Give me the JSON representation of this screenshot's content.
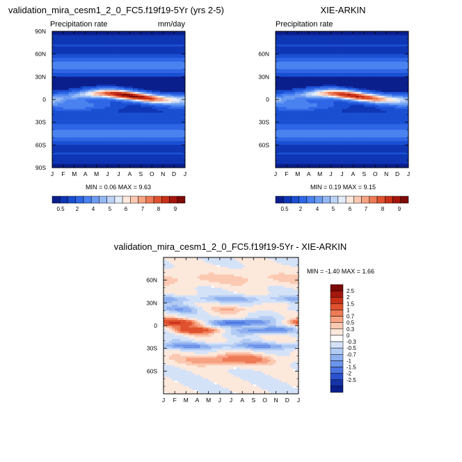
{
  "chart_data": [
    {
      "type": "heatmap",
      "title": "validation_mira_cesm1_2_0_FC5.f19f19-5Yr (yrs 2-5)",
      "subtitle_left": "Precipitation rate",
      "subtitle_right": "mm/day",
      "x_ticks": [
        "J",
        "F",
        "M",
        "A",
        "M",
        "J",
        "J",
        "A",
        "S",
        "O",
        "N",
        "D",
        "J"
      ],
      "y_ticks": [
        "90N",
        "60N",
        "30N",
        "0",
        "30S",
        "60S",
        "90S"
      ],
      "y_tick_values": [
        90,
        60,
        30,
        0,
        -30,
        -60,
        -90
      ],
      "ylim": [
        -90,
        90
      ],
      "stats": "MIN =   0.06 MAX =   9.63",
      "min": 0.06,
      "max": 9.63,
      "colorbar_labels": [
        "0.5",
        "2",
        "4",
        "5",
        "6",
        "7",
        "8",
        "9"
      ],
      "colorbar_levels": [
        0.5,
        1,
        2,
        3,
        4,
        4.5,
        5,
        5.5,
        6,
        6.5,
        7,
        7.5,
        8,
        8.5,
        9
      ]
    },
    {
      "type": "heatmap",
      "title": "XIE-ARKIN",
      "subtitle_left": "Precipitation rate",
      "x_ticks": [
        "J",
        "F",
        "M",
        "A",
        "M",
        "J",
        "J",
        "A",
        "S",
        "O",
        "N",
        "D",
        "J"
      ],
      "y_ticks": [
        "60N",
        "30N",
        "0",
        "30S",
        "60S"
      ],
      "y_tick_values": [
        60,
        30,
        0,
        -30,
        -60
      ],
      "ylim": [
        -90,
        90
      ],
      "stats": "MIN =   0.19 MAX =   9.15",
      "min": 0.19,
      "max": 9.15,
      "colorbar_labels": [
        "0.5",
        "2",
        "4",
        "5",
        "6",
        "7",
        "8",
        "9"
      ],
      "colorbar_levels": [
        0.5,
        1,
        2,
        3,
        4,
        4.5,
        5,
        5.5,
        6,
        6.5,
        7,
        7.5,
        8,
        8.5,
        9
      ]
    },
    {
      "type": "heatmap",
      "title": "validation_mira_cesm1_2_0_FC5.f19f19-5Yr - XIE-ARKIN",
      "x_ticks": [
        "J",
        "F",
        "M",
        "A",
        "M",
        "J",
        "J",
        "A",
        "S",
        "O",
        "N",
        "D",
        "J"
      ],
      "y_ticks": [
        "60N",
        "30N",
        "0",
        "30S",
        "60S"
      ],
      "y_tick_values": [
        60,
        30,
        0,
        -30,
        -60
      ],
      "ylim": [
        -90,
        90
      ],
      "stats": "MIN = -1.40 MAX =   1.66",
      "min": -1.4,
      "max": 1.66,
      "colorbar_labels": [
        "2.5",
        "2",
        "1.5",
        "1",
        "0.7",
        "0.5",
        "0.3",
        "0",
        "-0.3",
        "-0.5",
        "-0.7",
        "-1",
        "-1.5",
        "-2",
        "-2.5"
      ]
    }
  ],
  "colors": {
    "precip_scale": [
      "#0a1e8c",
      "#0f36b4",
      "#1a4fd2",
      "#2e66e6",
      "#4a82f0",
      "#6c9cf2",
      "#93b8f4",
      "#bcd3f6",
      "#e2ecfa",
      "#fde8dc",
      "#fbc9b2",
      "#f6a383",
      "#ee7a56",
      "#e0522f",
      "#c83018",
      "#a5160c",
      "#7d0a06"
    ],
    "diff_scale": [
      "#7d0a06",
      "#a5160c",
      "#c83018",
      "#e0522f",
      "#ee7a56",
      "#f6a383",
      "#fbc9b2",
      "#fde8dc",
      "#ffffff",
      "#d4e2f8",
      "#b2cbf4",
      "#8fb0ef",
      "#6c94ea",
      "#4a75e2",
      "#2a52d0",
      "#1434a8",
      "#0a1e8c"
    ]
  }
}
